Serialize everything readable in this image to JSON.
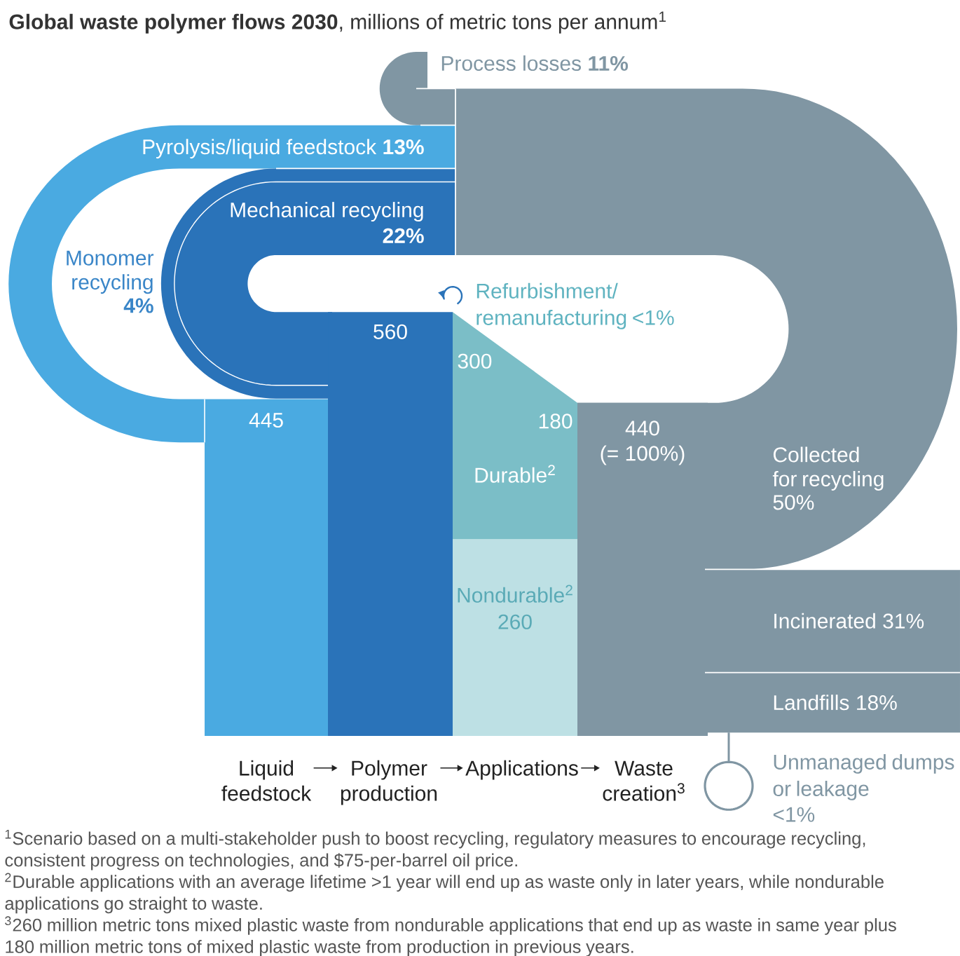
{
  "chart_data": {
    "type": "other",
    "title": "**Global waste polymer flows 2030**, millions of metric tons per annum$^{1}$",
    "categories": [
      "Liquid feedstock",
      "Polymer production",
      "Applications",
      "Waste creation$^{3}$"
    ],
    "series": [
      {
        "color": "#4aaae1",
        "values": [
          445,
          null,
          null,
          null
        ],
        "value_labels": [
          "445",
          null,
          null,
          null
        ]
      },
      {
        "color": "#2a73b9",
        "values": [
          null,
          560,
          null,
          null
        ],
        "value_labels": [
          null,
          "560",
          null,
          null
        ]
      },
      {
        "name": "Durable$^{2}$",
        "color": "#7bbec7",
        "values": [
          null,
          null,
          300,
          180
        ],
        "value_labels": [
          null,
          null,
          "300",
          "180"
        ]
      },
      {
        "name": "Nondurable$^{2}$",
        "color": "#bde0e4",
        "values": [
          null,
          null,
          260,
          null
        ],
        "value_labels": [
          null,
          null,
          "260",
          null
        ]
      },
      {
        "color": "#8096a3",
        "values": [
          null,
          null,
          null,
          440
        ],
        "value_labels": [
          null,
          null,
          null,
          "440 (= 100%)"
        ]
      },
      {
        "name": "Process losses",
        "color": "#8096a3",
        "values": [
          null,
          null,
          null,
          11
        ],
        "value_labels": [
          null,
          null,
          null,
          "11%"
        ]
      },
      {
        "name": "Pyrolysis/liquid feedstock",
        "color": "#4aaae1",
        "values": [
          13,
          null,
          null,
          null
        ],
        "value_labels": [
          "13%",
          null,
          null,
          null
        ]
      },
      {
        "name": "Monomer recycling",
        "color": "#2a73b9",
        "values": [
          4,
          null,
          null,
          null
        ],
        "value_labels": [
          "4%",
          null,
          null,
          null
        ]
      },
      {
        "name": "Mechanical recycling",
        "color": "#2a73b9",
        "values": [
          null,
          22,
          null,
          null
        ],
        "value_labels": [
          null,
          "22%",
          null,
          null
        ]
      },
      {
        "name": "Refurbishment/ remanufacturing",
        "color": "#2a73b9",
        "values": [
          null,
          null,
          null,
          null
        ],
        "value_labels": [
          null,
          null,
          "<1%",
          null
        ]
      },
      {
        "name": "Collected for recycling",
        "color": "#8096a3",
        "values": [
          null,
          null,
          null,
          50
        ],
        "value_labels": [
          null,
          null,
          null,
          "50%"
        ]
      },
      {
        "name": "Incinerated",
        "color": "#8096a3",
        "values": [
          null,
          null,
          null,
          31
        ],
        "value_labels": [
          null,
          null,
          null,
          "31%"
        ]
      },
      {
        "name": "Landfills",
        "color": "#8096a3",
        "values": [
          null,
          null,
          null,
          18
        ],
        "value_labels": [
          null,
          null,
          null,
          "18%"
        ]
      },
      {
        "name": "Unmanaged dumps or leakage",
        "color": "#8096a3",
        "values": [
          null,
          null,
          null,
          null
        ],
        "value_labels": [
          null,
          null,
          null,
          "<1%"
        ]
      }
    ],
    "annotations": [
      "$^{1}$Scenario based on a multi-stakeholder push to boost recycling, regulatory measures to encourage recycling, consistent progress on technologies, and $75-per-barrel oil price.",
      "$^{2}$Durable applications with an average lifetime >1 year will end up as waste only in later years, while nondurable applications go straight to waste.",
      "$^{3}$260 million metric tons mixed plastic waste from nondurable applications that end up as waste in same year plus 180 million metric tons of mixed plastic waste from production in previous years."
    ]
  }
}
